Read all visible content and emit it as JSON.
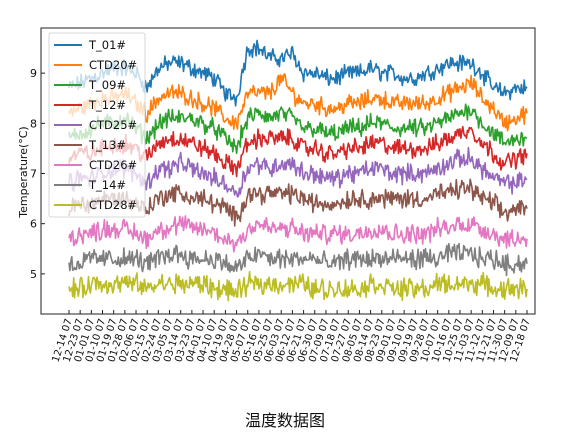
{
  "chart_data": {
    "type": "line",
    "title": "",
    "xlabel": "",
    "ylabel": "Temperature(°C)",
    "ylim": [
      4.2,
      9.9
    ],
    "yticks": [
      5,
      6,
      7,
      8,
      9
    ],
    "x_tick_labels": [
      "12-14 07",
      "12-23 07",
      "01-01 07",
      "01-10 07",
      "01-19 07",
      "01-28 07",
      "02-06 07",
      "02-15 07",
      "02-24 07",
      "03-05 07",
      "03-14 07",
      "03-23 07",
      "04-01 07",
      "04-10 07",
      "04-19 07",
      "04-28 07",
      "05-07 07",
      "05-16 07",
      "05-25 07",
      "06-03 07",
      "06-12 07",
      "06-21 07",
      "06-30 07",
      "07-09 07",
      "07-18 07",
      "07-27 07",
      "08-05 07",
      "08-14 07",
      "08-23 07",
      "09-01 07",
      "09-10 07",
      "09-19 07",
      "09-28 07",
      "10-07 07",
      "10-16 07",
      "10-25 07",
      "11-03 07",
      "11-12 07",
      "11-21 07",
      "11-30 07",
      "12-09 07",
      "12-18 07"
    ],
    "legend_placement": "top-left",
    "grid": false,
    "series": [
      {
        "name": "T_01#",
        "color": "#1f77b4",
        "values": [
          8.7,
          8.8,
          8.9,
          9.0,
          9.1,
          9.1,
          9.0,
          8.7,
          9.1,
          9.2,
          9.2,
          9.1,
          9.0,
          8.9,
          8.6,
          8.5,
          9.5,
          9.5,
          9.3,
          9.3,
          9.4,
          9.0,
          9.0,
          8.9,
          8.9,
          9.0,
          9.0,
          9.1,
          9.0,
          9.0,
          8.9,
          8.9,
          9.0,
          9.1,
          9.2,
          9.2,
          9.2,
          9.0,
          8.7,
          8.6,
          8.7,
          8.7
        ]
      },
      {
        "name": "CTD20#",
        "color": "#ff7f0e",
        "values": [
          8.2,
          8.3,
          8.4,
          8.5,
          8.5,
          8.6,
          8.4,
          8.2,
          8.5,
          8.6,
          8.6,
          8.5,
          8.4,
          8.3,
          8.1,
          8.0,
          8.6,
          8.6,
          8.6,
          8.9,
          8.6,
          8.4,
          8.4,
          8.3,
          8.3,
          8.4,
          8.4,
          8.5,
          8.5,
          8.4,
          8.4,
          8.4,
          8.4,
          8.5,
          8.6,
          8.7,
          8.8,
          8.5,
          8.3,
          8.0,
          8.1,
          8.2
        ]
      },
      {
        "name": "T_09#",
        "color": "#2ca02c",
        "values": [
          7.7,
          7.8,
          7.9,
          8.0,
          8.0,
          8.1,
          7.9,
          7.7,
          8.0,
          8.1,
          8.1,
          8.1,
          8.0,
          7.9,
          7.7,
          7.5,
          8.1,
          8.2,
          8.1,
          8.2,
          8.1,
          7.9,
          7.9,
          7.8,
          7.8,
          7.9,
          7.9,
          8.0,
          8.0,
          7.9,
          7.9,
          7.9,
          7.9,
          8.0,
          8.1,
          8.2,
          8.3,
          8.0,
          7.8,
          7.6,
          7.7,
          7.7
        ]
      },
      {
        "name": "T_12#",
        "color": "#d62728",
        "values": [
          7.3,
          7.4,
          7.4,
          7.5,
          7.6,
          7.6,
          7.5,
          7.3,
          7.6,
          7.7,
          7.7,
          7.6,
          7.5,
          7.4,
          7.2,
          7.1,
          7.6,
          7.7,
          7.7,
          7.7,
          7.7,
          7.5,
          7.5,
          7.4,
          7.4,
          7.5,
          7.5,
          7.6,
          7.6,
          7.5,
          7.5,
          7.5,
          7.5,
          7.6,
          7.7,
          7.8,
          7.9,
          7.6,
          7.4,
          7.2,
          7.3,
          7.4
        ]
      },
      {
        "name": "CTD25#",
        "color": "#9467bd",
        "values": [
          6.8,
          6.9,
          6.9,
          7.0,
          7.1,
          7.1,
          7.0,
          6.8,
          7.1,
          7.1,
          7.2,
          7.1,
          7.0,
          6.9,
          6.8,
          6.6,
          7.1,
          7.2,
          7.1,
          7.2,
          7.2,
          7.0,
          7.0,
          6.9,
          6.9,
          7.0,
          7.0,
          7.1,
          7.1,
          7.0,
          7.0,
          7.0,
          7.0,
          7.1,
          7.2,
          7.3,
          7.3,
          7.1,
          6.9,
          6.8,
          6.8,
          6.9
        ]
      },
      {
        "name": "T_13#",
        "color": "#8c564b",
        "values": [
          6.3,
          6.4,
          6.4,
          6.5,
          6.5,
          6.5,
          6.4,
          6.3,
          6.5,
          6.6,
          6.6,
          6.5,
          6.5,
          6.4,
          6.3,
          6.1,
          6.6,
          6.6,
          6.6,
          6.6,
          6.6,
          6.5,
          6.4,
          6.4,
          6.4,
          6.5,
          6.5,
          6.5,
          6.5,
          6.5,
          6.5,
          6.5,
          6.5,
          6.6,
          6.6,
          6.7,
          6.7,
          6.5,
          6.4,
          6.2,
          6.3,
          6.3
        ]
      },
      {
        "name": "CTD26#",
        "color": "#e377c2",
        "values": [
          5.7,
          5.8,
          5.8,
          5.9,
          5.9,
          5.9,
          5.8,
          5.7,
          5.9,
          5.9,
          6.0,
          5.9,
          5.9,
          5.8,
          5.7,
          5.6,
          5.9,
          6.0,
          5.9,
          5.9,
          5.9,
          5.8,
          5.8,
          5.8,
          5.8,
          5.8,
          5.8,
          5.9,
          5.9,
          5.8,
          5.8,
          5.8,
          5.8,
          5.9,
          5.9,
          6.0,
          6.0,
          5.9,
          5.8,
          5.7,
          5.7,
          5.7
        ]
      },
      {
        "name": "T_14#",
        "color": "#7f7f7f",
        "values": [
          5.2,
          5.2,
          5.3,
          5.3,
          5.3,
          5.3,
          5.3,
          5.2,
          5.3,
          5.4,
          5.4,
          5.3,
          5.3,
          5.3,
          5.2,
          5.1,
          5.3,
          5.4,
          5.3,
          5.3,
          5.3,
          5.3,
          5.3,
          5.2,
          5.2,
          5.3,
          5.3,
          5.3,
          5.3,
          5.3,
          5.3,
          5.3,
          5.3,
          5.3,
          5.4,
          5.4,
          5.4,
          5.3,
          5.3,
          5.2,
          5.2,
          5.2
        ]
      },
      {
        "name": "CTD28#",
        "color": "#bcbd22",
        "values": [
          4.7,
          4.7,
          4.8,
          4.8,
          4.8,
          4.8,
          4.8,
          4.7,
          4.8,
          4.8,
          4.8,
          4.8,
          4.8,
          4.7,
          4.7,
          4.6,
          4.8,
          4.8,
          4.8,
          4.8,
          4.8,
          4.8,
          4.7,
          4.7,
          4.7,
          4.7,
          4.7,
          4.8,
          4.8,
          4.7,
          4.7,
          4.7,
          4.7,
          4.8,
          4.8,
          4.8,
          4.8,
          4.8,
          4.7,
          4.7,
          4.7,
          4.7
        ]
      }
    ]
  },
  "caption": "温度数据图"
}
